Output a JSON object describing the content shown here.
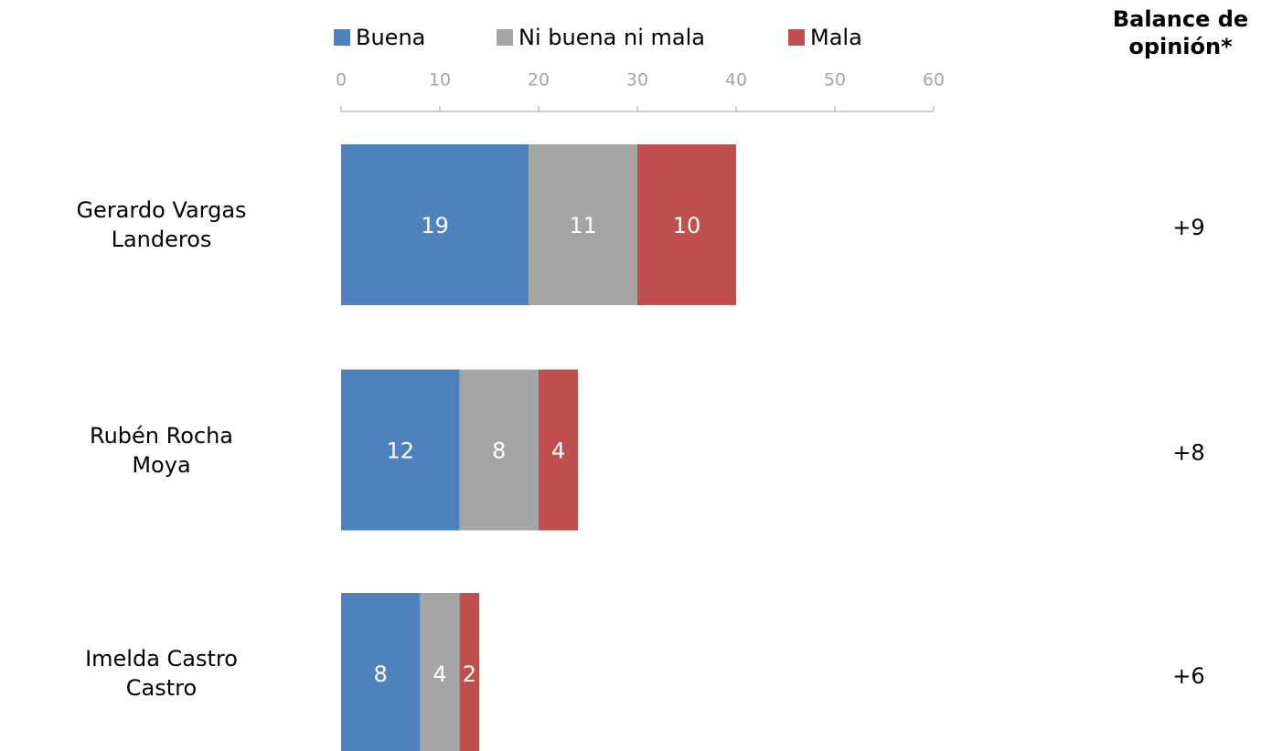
{
  "chart_data": {
    "type": "stacked_bar_horizontal",
    "categories": [
      "Gerardo Vargas Landeros",
      "Rubén Rocha Moya",
      "Imelda Castro Castro"
    ],
    "series": [
      {
        "name": "Buena",
        "color": "#4f81bd",
        "values": [
          19,
          12,
          8
        ]
      },
      {
        "name": "Ni buena ni mala",
        "color": "#a5a5a5",
        "values": [
          11,
          8,
          4
        ]
      },
      {
        "name": "Mala",
        "color": "#c0504d",
        "values": [
          10,
          4,
          2
        ]
      }
    ],
    "xlim": [
      0,
      60
    ],
    "xticks": [
      0,
      10,
      20,
      30,
      40,
      50,
      60
    ],
    "legend": "top",
    "balance_title": "Balance de opinión*",
    "balance_labels": [
      "+9",
      "+8",
      "+6"
    ]
  }
}
